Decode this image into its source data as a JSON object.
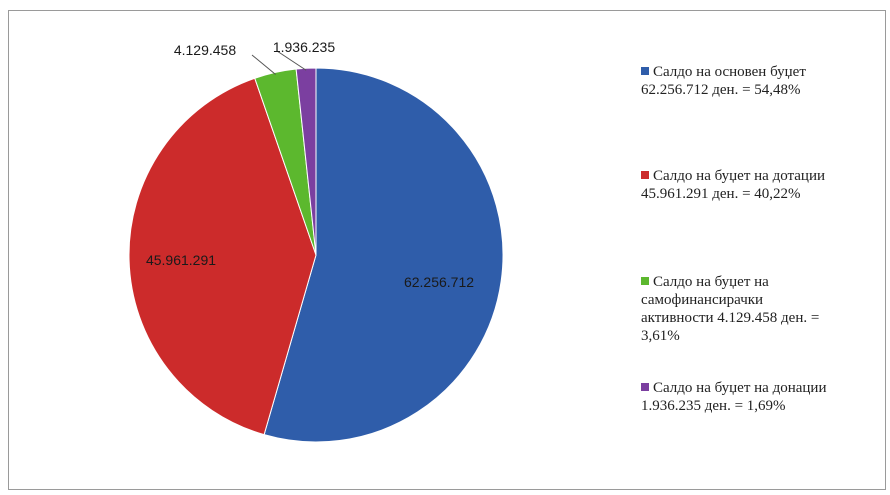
{
  "chart_data": {
    "type": "pie",
    "title": "",
    "slices": [
      {
        "label": "Салдо на основен буџет",
        "value": 62256712,
        "value_label": "62.256.712",
        "legend_value": "62.256.712 ден. = 54,48%",
        "percent": 54.48,
        "color": "#2f5daa"
      },
      {
        "label": "Салдо на буџет на дотации",
        "value": 45961291,
        "value_label": "45.961.291",
        "legend_value": "45.961.291 ден. = 40,22%",
        "percent": 40.22,
        "color": "#cc2b2b"
      },
      {
        "label": "Салдо на буџет на самофинансирачки активности",
        "value": 4129458,
        "value_label": "4.129.458",
        "legend_value": "4.129.458 ден. = 3,61%",
        "percent": 3.61,
        "color": "#5cb82e"
      },
      {
        "label": "Салдо на буџет на донации",
        "value": 1936235,
        "value_label": "1.936.235",
        "legend_value": "1.936.235 ден. = 1,69%",
        "percent": 1.69,
        "color": "#7b3fa0"
      }
    ],
    "legend_position": "right"
  },
  "legend": {
    "items": [
      {
        "line1": "Салдо на основен буџет",
        "line2": "62.256.712 ден. = 54,48%"
      },
      {
        "line1": "Салдо на буџет на дотации",
        "line2": "45.961.291 ден. = 40,22%"
      },
      {
        "line1": "Салдо на буџет на",
        "line2": "самофинансирачки",
        "line3": "активности 4.129.458 ден. =",
        "line4": "3,61%"
      },
      {
        "line1": "Салдо на буџет на донации",
        "line2": "1.936.235 ден. = 1,69%"
      }
    ]
  }
}
